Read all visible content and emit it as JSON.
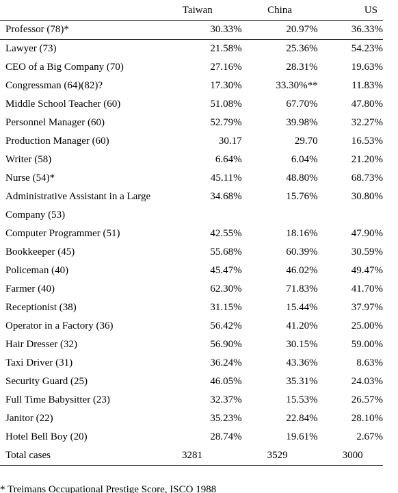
{
  "table": {
    "header": [
      "",
      "Taiwan",
      "China",
      "US"
    ],
    "rows": [
      [
        "Professor (78)*",
        "30.33%",
        "20.97%",
        "36.33%"
      ],
      [
        "Lawyer (73)",
        "21.58%",
        "25.36%",
        "54.23%"
      ],
      [
        "CEO of a Big Company (70)",
        "27.16%",
        "28.31%",
        "19.63%"
      ],
      [
        "Congressman (64)(82)?",
        "17.30%",
        "33.30%**",
        "11.83%"
      ],
      [
        "Middle School Teacher (60)",
        "51.08%",
        "67.70%",
        "47.80%"
      ],
      [
        "Personnel Manager (60)",
        "52.79%",
        "39.98%",
        "32.27%"
      ],
      [
        "Production Manager (60)",
        "30.17",
        "29.70",
        "16.53%"
      ],
      [
        "Writer (58)",
        "6.64%",
        "6.04%",
        "21.20%"
      ],
      [
        "Nurse (54)*",
        "45.11%",
        "48.80%",
        "68.73%"
      ],
      [
        "Administrative Assistant in a Large Company (53)",
        "34.68%",
        "15.76%",
        "30.80%"
      ],
      [
        "Computer Programmer (51)",
        "42.55%",
        "18.16%",
        "47.90%"
      ],
      [
        "Bookkeeper (45)",
        "55.68%",
        "60.39%",
        "30.59%"
      ],
      [
        "Policeman (40)",
        "45.47%",
        "46.02%",
        "49.47%"
      ],
      [
        "Farmer (40)",
        "62.30%",
        "71.83%",
        "41.70%"
      ],
      [
        "Receptionist (38)",
        "31.15%",
        "15.44%",
        "37.97%"
      ],
      [
        "Operator in a Factory (36)",
        "56.42%",
        "41.20%",
        "25.00%"
      ],
      [
        "Hair Dresser (32)",
        "56.90%",
        "30.15%",
        "59.00%"
      ],
      [
        "Taxi Driver (31)",
        "36.24%",
        "43.36%",
        "8.63%"
      ],
      [
        "Security Guard (25)",
        "46.05%",
        "35.31%",
        "24.03%"
      ],
      [
        "Full Time Babysitter (23)",
        "32.37%",
        "15.53%",
        "26.57%"
      ],
      [
        "Janitor (22)",
        "35.23%",
        "22.84%",
        "28.10%"
      ],
      [
        "Hotel Bell Boy (20)",
        "28.74%",
        "19.61%",
        "2.67%"
      ]
    ],
    "total": [
      "Total cases",
      "3281",
      "3529",
      "3000"
    ],
    "footnote": "* Treimans Occupational Prestige Score, ISCO 1988"
  }
}
